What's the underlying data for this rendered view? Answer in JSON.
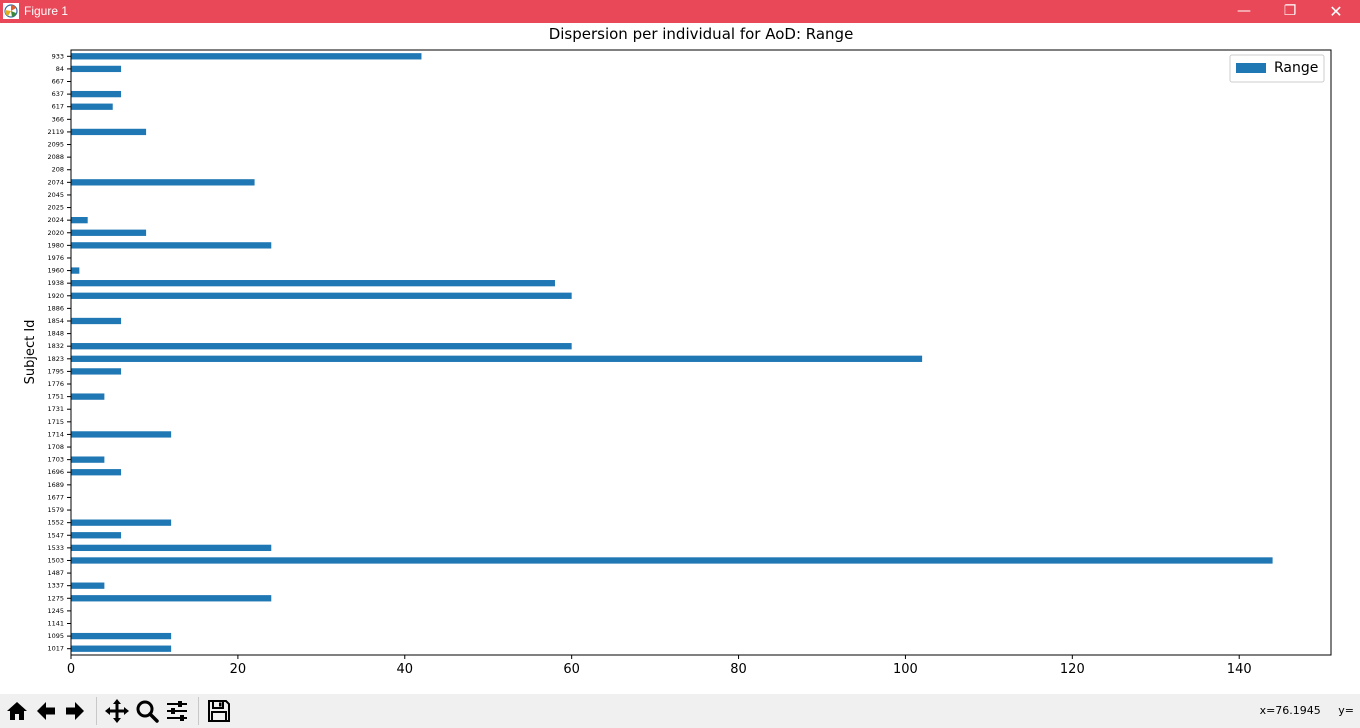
{
  "window": {
    "title": "Figure 1",
    "min_glyph": "—",
    "max_glyph": "❐",
    "close_glyph": "✕"
  },
  "toolbar": {
    "buttons": [
      {
        "name": "home",
        "icon": "home-icon"
      },
      {
        "name": "back",
        "icon": "arrow-left-icon"
      },
      {
        "name": "forward",
        "icon": "arrow-right-icon"
      },
      {
        "name": "pan",
        "icon": "move-icon"
      },
      {
        "name": "zoom",
        "icon": "magnifier-icon"
      },
      {
        "name": "configure-subplots",
        "icon": "sliders-icon"
      },
      {
        "name": "save",
        "icon": "floppy-disk-icon"
      }
    ],
    "coords": "x=76.1945     y="
  },
  "chart_data": {
    "type": "bar",
    "orientation": "horizontal",
    "title": "Dispersion per individual for AoD: Range",
    "xlabel": "",
    "ylabel": "Subject Id",
    "xlim": [
      0,
      151
    ],
    "xticks": [
      0,
      20,
      40,
      60,
      80,
      100,
      120,
      140
    ],
    "grid": false,
    "legend_position": "top-right",
    "bar_color": "#1f77b4",
    "categories": [
      "1017",
      "1095",
      "1141",
      "1245",
      "1275",
      "1337",
      "1487",
      "1503",
      "1533",
      "1547",
      "1552",
      "1579",
      "1677",
      "1689",
      "1696",
      "1703",
      "1708",
      "1714",
      "1715",
      "1731",
      "1751",
      "1776",
      "1795",
      "1823",
      "1832",
      "1848",
      "1854",
      "1886",
      "1920",
      "1938",
      "1960",
      "1976",
      "1980",
      "2020",
      "2024",
      "2025",
      "2045",
      "2074",
      "208",
      "2088",
      "2095",
      "2119",
      "366",
      "617",
      "637",
      "667",
      "84",
      "933"
    ],
    "series": [
      {
        "name": "Range",
        "values": [
          12,
          12,
          0,
          0,
          24,
          4,
          0,
          144,
          24,
          6,
          12,
          0,
          0,
          0,
          6,
          4,
          0,
          12,
          0,
          0,
          4,
          0,
          6,
          102,
          60,
          0,
          6,
          0,
          60,
          58,
          1,
          0,
          24,
          9,
          2,
          0,
          0,
          22,
          0,
          0,
          0,
          9,
          0,
          5,
          6,
          0,
          6,
          42
        ]
      }
    ]
  }
}
